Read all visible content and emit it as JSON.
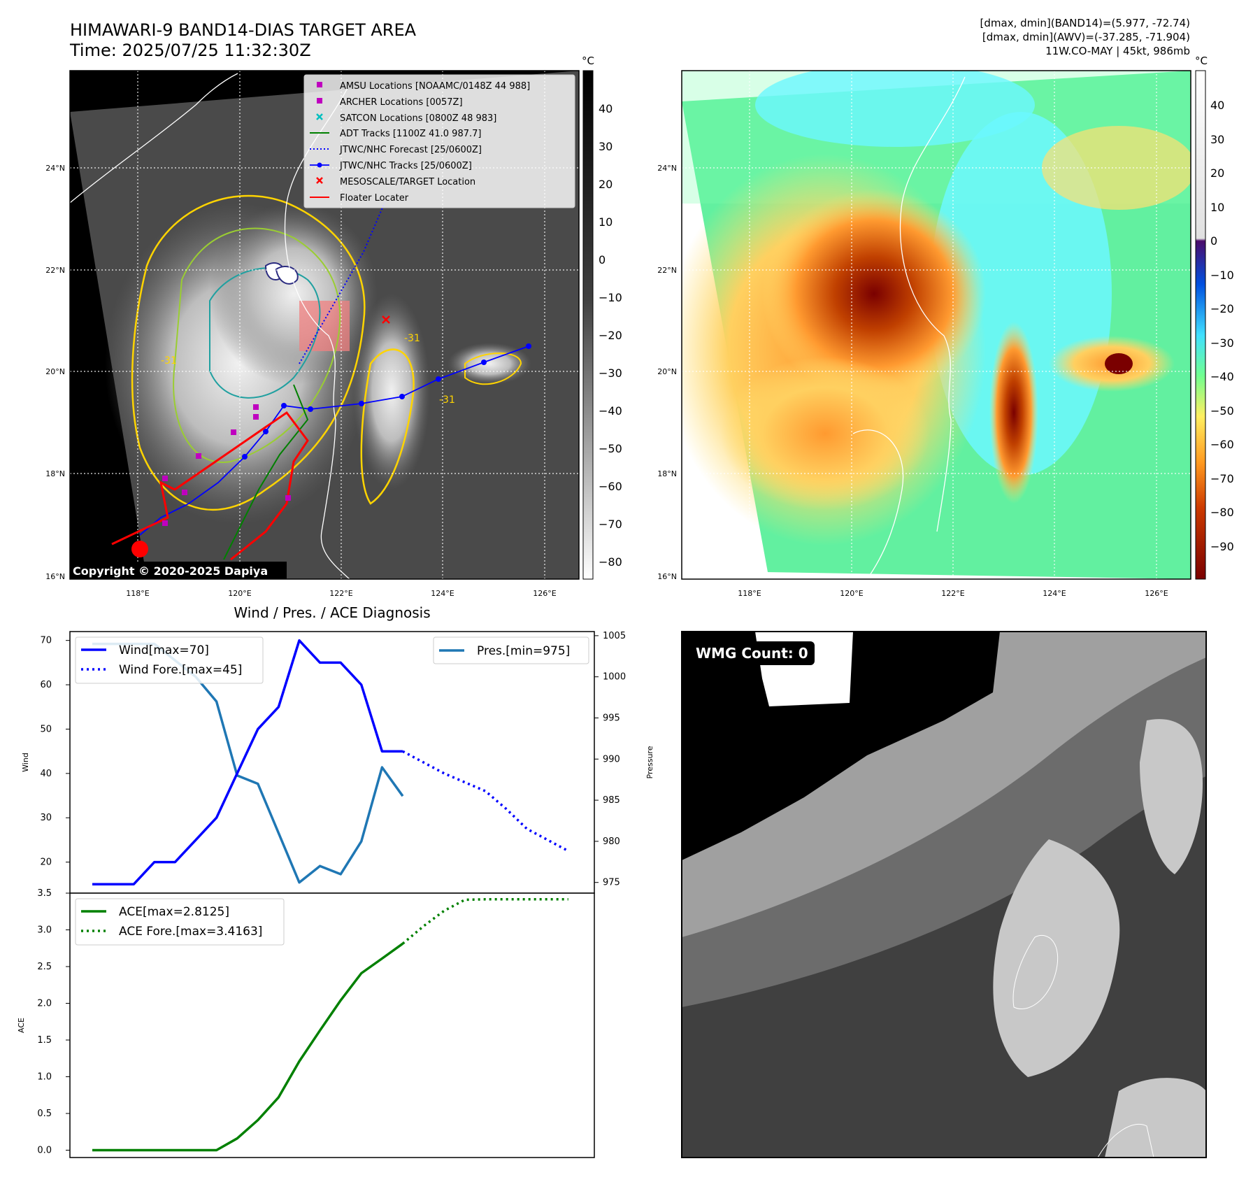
{
  "header": {
    "title_line1": "HIMAWARI-9 BAND14-DIAS TARGET AREA",
    "title_line2": "Time: 2025/07/25 11:32:30Z",
    "stats_line1": "[dmax, dmin](BAND14)=(5.977, -72.74)",
    "stats_line2": "[dmax, dmin](AWV)=(-37.285, -71.904)",
    "stats_line3": "11W.CO-MAY | 45kt, 986mb"
  },
  "map": {
    "lat_ticks": [
      "24°N",
      "22°N",
      "20°N",
      "18°N",
      "16°N"
    ],
    "lon_ticks": [
      "118°E",
      "120°E",
      "122°E",
      "124°E",
      "126°E"
    ],
    "copyright": "Copyright © 2020-2025 Dapiya",
    "contour_labels": [
      "-31",
      "-31",
      "-31"
    ],
    "legend": [
      {
        "label": "AMSU Locations [NOAAMC/0148Z 44 988]",
        "color": "#bf00bf",
        "marker": "square"
      },
      {
        "label": "ARCHER Locations [0057Z]",
        "color": "#bf00bf",
        "marker": "square"
      },
      {
        "label": "SATCON Locations [0800Z 48 983]",
        "color": "#00bfbf",
        "marker": "x"
      },
      {
        "label": "ADT Tracks [1100Z 41.0 987.7]",
        "color": "#008000",
        "marker": "line"
      },
      {
        "label": "JTWC/NHC Forecast [25/0600Z]",
        "color": "#0000ff",
        "marker": "dotted"
      },
      {
        "label": "JTWC/NHC Tracks [25/0600Z]",
        "color": "#0000ff",
        "marker": "line-dot"
      },
      {
        "label": "MESOSCALE/TARGET Location",
        "color": "#ff0000",
        "marker": "x"
      },
      {
        "label": "Floater Locater",
        "color": "#ff0000",
        "marker": "line"
      }
    ]
  },
  "colorbar_gray": {
    "unit": "°C",
    "ticks": [
      "40",
      "30",
      "20",
      "10",
      "0",
      "−10",
      "−20",
      "−30",
      "−40",
      "−50",
      "−60",
      "−70",
      "−80"
    ]
  },
  "colorbar_color": {
    "unit": "°C",
    "ticks": [
      "40",
      "30",
      "20",
      "10",
      "0",
      "−10",
      "−20",
      "−30",
      "−40",
      "−50",
      "−60",
      "−70",
      "−80",
      "−90"
    ]
  },
  "wmg": {
    "label": "WMG Count: 0"
  },
  "chart_data": [
    {
      "type": "line",
      "title": "Wind / Pres. / ACE Diagnosis",
      "ylabel": "Wind",
      "y2label": "Pressure",
      "ylim": [
        13,
        72
      ],
      "y2lim": [
        973.7,
        1005.5
      ],
      "yticks": [
        "20",
        "30",
        "40",
        "50",
        "60",
        "70"
      ],
      "y2ticks": [
        "975",
        "980",
        "985",
        "990",
        "995",
        "1000",
        "1005"
      ],
      "grid": false,
      "legend_left": "top-left",
      "legend_right": "top-right",
      "series": [
        {
          "name": "Wind[max=70]",
          "color": "#0000ff",
          "style": "solid",
          "x": [
            0,
            2,
            3,
            4,
            5,
            6,
            7,
            8,
            9,
            10,
            11,
            12,
            13,
            14,
            15
          ],
          "values": [
            15,
            15,
            20,
            20,
            25,
            30,
            40,
            50,
            55,
            70,
            65,
            65,
            60,
            45,
            45
          ]
        },
        {
          "name": "Wind Fore.[max=45]",
          "color": "#0000ff",
          "style": "dotted",
          "x": [
            15,
            16,
            17,
            18,
            19,
            20,
            21,
            22,
            23
          ],
          "values": [
            45,
            42.5,
            40,
            38,
            36,
            32,
            27.5,
            25,
            22.5
          ]
        },
        {
          "name": "Pres.[min=975]",
          "color": "#1f77b4",
          "style": "solid",
          "axis": "right",
          "x": [
            0,
            3,
            4,
            5,
            6,
            7,
            8,
            9,
            10,
            11,
            12,
            13,
            14,
            15
          ],
          "values": [
            1004,
            1004,
            1002,
            1000,
            997,
            988,
            987,
            981,
            975,
            977,
            976,
            980,
            989,
            985.5
          ]
        }
      ]
    },
    {
      "type": "line",
      "ylabel": "ACE",
      "ylim": [
        -0.1,
        3.5
      ],
      "yticks": [
        "0.0",
        "0.5",
        "1.0",
        "1.5",
        "2.0",
        "2.5",
        "3.0",
        "3.5"
      ],
      "grid": false,
      "legend": "top-left",
      "series": [
        {
          "name": "ACE[max=2.8125]",
          "color": "#008000",
          "style": "solid",
          "x": [
            0,
            6,
            7,
            8,
            9,
            10,
            11,
            12,
            13,
            14,
            15
          ],
          "values": [
            0,
            0,
            0.16,
            0.41,
            0.72,
            1.21,
            1.63,
            2.04,
            2.41,
            2.61,
            2.8125
          ]
        },
        {
          "name": "ACE Fore.[max=3.4163]",
          "color": "#008000",
          "style": "dotted",
          "x": [
            15,
            16,
            17,
            18,
            19,
            20,
            21,
            22,
            23
          ],
          "values": [
            2.8125,
            3.05,
            3.26,
            3.41,
            3.4163,
            3.4163,
            3.4163,
            3.4163,
            3.4163
          ]
        }
      ]
    }
  ]
}
